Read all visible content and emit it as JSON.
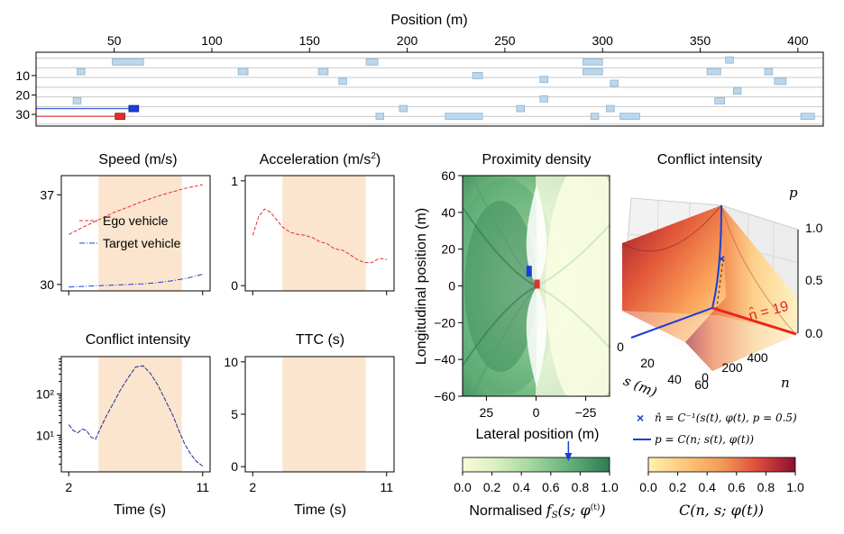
{
  "colors": {
    "ego": "#e03030",
    "target": "#1a3fd6",
    "shade": "#fbe5cf",
    "lane_car": "#bcd7ec",
    "ttc_tick": "#8a1a6a",
    "ci_tick": "#1a2f8a"
  },
  "chart_data": [
    {
      "id": "road",
      "type": "scatter",
      "title": "Position (m)",
      "x_ticks": [
        "50",
        "100",
        "150",
        "200",
        "250",
        "300",
        "350",
        "400"
      ],
      "x_tick_values": [
        50,
        100,
        150,
        200,
        250,
        300,
        350,
        400
      ],
      "y_ticks": [
        "10",
        "20",
        "30"
      ],
      "y_tick_values": [
        10,
        20,
        30
      ],
      "xlim": [
        10,
        413
      ],
      "ylim": [
        36,
        -2
      ],
      "lane_lines": [
        1,
        6,
        11,
        16,
        21,
        26,
        31,
        35
      ],
      "vehicles": [
        {
          "x": 57,
          "y": 3,
          "len": 16,
          "role": "other"
        },
        {
          "x": 33,
          "y": 8,
          "len": 4,
          "role": "other"
        },
        {
          "x": 116,
          "y": 8,
          "len": 5,
          "role": "other"
        },
        {
          "x": 157,
          "y": 8,
          "len": 5,
          "role": "other"
        },
        {
          "x": 182,
          "y": 3,
          "len": 6,
          "role": "other"
        },
        {
          "x": 167,
          "y": 13,
          "len": 4,
          "role": "other"
        },
        {
          "x": 236,
          "y": 10,
          "len": 5,
          "role": "other"
        },
        {
          "x": 270,
          "y": 12,
          "len": 4,
          "role": "other"
        },
        {
          "x": 295,
          "y": 3,
          "len": 10,
          "role": "other"
        },
        {
          "x": 295,
          "y": 8,
          "len": 10,
          "role": "other"
        },
        {
          "x": 306,
          "y": 14,
          "len": 4,
          "role": "other"
        },
        {
          "x": 357,
          "y": 8,
          "len": 7,
          "role": "other"
        },
        {
          "x": 365,
          "y": 2,
          "len": 4,
          "role": "other"
        },
        {
          "x": 385,
          "y": 8,
          "len": 4,
          "role": "other"
        },
        {
          "x": 391,
          "y": 13,
          "len": 6,
          "role": "other"
        },
        {
          "x": 369,
          "y": 18,
          "len": 4,
          "role": "other"
        },
        {
          "x": 360,
          "y": 23,
          "len": 5,
          "role": "other"
        },
        {
          "x": 270,
          "y": 22,
          "len": 4,
          "role": "other"
        },
        {
          "x": 258,
          "y": 27,
          "len": 4,
          "role": "other"
        },
        {
          "x": 198,
          "y": 27,
          "len": 4,
          "role": "other"
        },
        {
          "x": 186,
          "y": 31,
          "len": 4,
          "role": "other"
        },
        {
          "x": 229,
          "y": 31,
          "len": 19,
          "role": "other"
        },
        {
          "x": 304,
          "y": 27,
          "len": 4,
          "role": "other"
        },
        {
          "x": 296,
          "y": 31,
          "len": 4,
          "role": "other"
        },
        {
          "x": 314,
          "y": 31,
          "len": 10,
          "role": "other"
        },
        {
          "x": 405,
          "y": 31,
          "len": 7,
          "role": "other"
        },
        {
          "x": 31,
          "y": 23,
          "len": 4,
          "role": "other"
        },
        {
          "x": 60,
          "y": 27,
          "len": 5,
          "role": "target"
        },
        {
          "x": 53,
          "y": 31,
          "len": 5,
          "role": "ego"
        }
      ]
    },
    {
      "id": "speed",
      "type": "line",
      "title": "Speed (m/s)",
      "xlim": [
        1.5,
        11.5
      ],
      "ylim": [
        29.5,
        38.5
      ],
      "x_ticks": [],
      "y_ticks": [
        "30",
        "37"
      ],
      "y_tick_values": [
        30,
        37
      ],
      "shade": [
        4.0,
        9.6
      ],
      "legend": "center-right",
      "series": [
        {
          "name": "Ego vehicle",
          "style": "dashed",
          "x": [
            2,
            3,
            4,
            5,
            6,
            7,
            8,
            9,
            10,
            11
          ],
          "values": [
            33.9,
            34.5,
            35.05,
            35.6,
            36.05,
            36.5,
            36.9,
            37.25,
            37.55,
            37.8
          ]
        },
        {
          "name": "Target vehicle",
          "style": "dashdot",
          "x": [
            2,
            3,
            4,
            5,
            6,
            7,
            8,
            9,
            10,
            11
          ],
          "values": [
            29.8,
            29.85,
            29.9,
            29.95,
            30.0,
            30.05,
            30.15,
            30.3,
            30.5,
            30.8
          ]
        }
      ]
    },
    {
      "id": "acceleration",
      "type": "line",
      "title": "Acceleration (m/s²)",
      "xlim": [
        1.5,
        11.5
      ],
      "ylim": [
        -0.05,
        1.05
      ],
      "x_ticks": [],
      "y_ticks": [
        "0",
        "1"
      ],
      "y_tick_values": [
        0,
        1
      ],
      "shade": [
        4.0,
        9.6
      ],
      "series": [
        {
          "style": "dashed",
          "x": [
            2,
            2.4,
            2.8,
            3.2,
            3.6,
            4.0,
            4.5,
            5.0,
            5.5,
            6.0,
            6.5,
            7.0,
            7.5,
            8.0,
            8.5,
            9.0,
            9.5,
            10.0,
            10.5,
            11.0
          ],
          "values": [
            0.48,
            0.66,
            0.73,
            0.7,
            0.63,
            0.56,
            0.51,
            0.49,
            0.48,
            0.46,
            0.42,
            0.4,
            0.35,
            0.34,
            0.3,
            0.25,
            0.22,
            0.22,
            0.26,
            0.25
          ]
        }
      ]
    },
    {
      "id": "conflict_intensity_time",
      "type": "line",
      "title": "Conflict intensity",
      "xlabel": "Time (s)",
      "xlim": [
        1.5,
        11.5
      ],
      "log_y": true,
      "ylim": [
        1.3,
        800
      ],
      "x_ticks": [
        "2",
        "11"
      ],
      "x_tick_values": [
        2,
        11
      ],
      "y_ticks": [
        "10¹",
        "10²"
      ],
      "y_tick_values": [
        10,
        100
      ],
      "shade": [
        4.0,
        9.6
      ],
      "series": [
        {
          "style": "dashdot",
          "x": [
            2.0,
            2.3,
            2.6,
            2.9,
            3.2,
            3.5,
            3.8,
            4.1,
            4.5,
            5.0,
            5.5,
            6.0,
            6.5,
            7.0,
            7.5,
            8.0,
            8.5,
            9.0,
            9.4,
            9.8,
            10.2,
            10.6,
            11.0
          ],
          "values": [
            18,
            13,
            11.5,
            14,
            13,
            9,
            8,
            14,
            28,
            60,
            130,
            250,
            450,
            480,
            310,
            160,
            70,
            30,
            13,
            6,
            3.5,
            2.3,
            1.8
          ]
        }
      ]
    },
    {
      "id": "ttc",
      "type": "line",
      "title": "TTC (s)",
      "xlabel": "Time (s)",
      "xlim": [
        1.5,
        11.5
      ],
      "ylim": [
        -0.5,
        10.5
      ],
      "x_ticks": [
        "2",
        "11"
      ],
      "x_tick_values": [
        2,
        11
      ],
      "y_ticks": [
        "0",
        "5",
        "10"
      ],
      "y_tick_values": [
        0,
        5,
        10
      ],
      "shade": [
        4.0,
        9.6
      ],
      "series": []
    },
    {
      "id": "proximity_density",
      "type": "heatmap",
      "title": "Proximity density",
      "xlabel": "Lateral position (m)",
      "ylabel": "Longitudinal position (m)",
      "xlim": [
        37,
        -37
      ],
      "ylim": [
        -60,
        60
      ],
      "x_ticks": [
        "25",
        "0",
        "−25"
      ],
      "x_tick_values": [
        25,
        0,
        -25
      ],
      "y_ticks": [
        "60",
        "40",
        "20",
        "0",
        "−20",
        "−40",
        "−60"
      ],
      "y_tick_values": [
        60,
        40,
        20,
        0,
        -20,
        -40,
        -60
      ],
      "ego": {
        "x": -0.5,
        "y": 1
      },
      "target": {
        "x": 3.5,
        "y": 8
      },
      "colorbar": {
        "label": "Normalised fS(s; φ(t))",
        "ticks": [
          "0.0",
          "0.2",
          "0.4",
          "0.6",
          "0.8",
          "1.0"
        ],
        "tick_values": [
          0,
          0.2,
          0.4,
          0.6,
          0.8,
          1.0
        ],
        "marker_value": 0.72
      }
    },
    {
      "id": "conflict_intensity_surface",
      "type": "area",
      "title": "Conflict intensity",
      "axes": {
        "s_label": "s (m)",
        "n_label": "n",
        "p_label": "p",
        "s_ticks": [
          "0",
          "20",
          "40",
          "60"
        ],
        "n_ticks": [
          "0",
          "200",
          "400",
          "600"
        ],
        "p_ticks": [
          "0.0",
          "0.5",
          "1.0"
        ]
      },
      "annotation": "n̂ = 19",
      "legend": [
        {
          "marker": "×",
          "text": "n̂ = C⁻¹(s(t), φ(t), p = 0.5)"
        },
        {
          "marker": "line",
          "text": "p = C(n; s(t), φ(t))"
        }
      ],
      "colorbar": {
        "label": "C(n, s; φ(t))",
        "ticks": [
          "0.0",
          "0.2",
          "0.4",
          "0.6",
          "0.8",
          "1.0"
        ],
        "tick_values": [
          0,
          0.2,
          0.4,
          0.6,
          0.8,
          1.0
        ]
      }
    }
  ]
}
